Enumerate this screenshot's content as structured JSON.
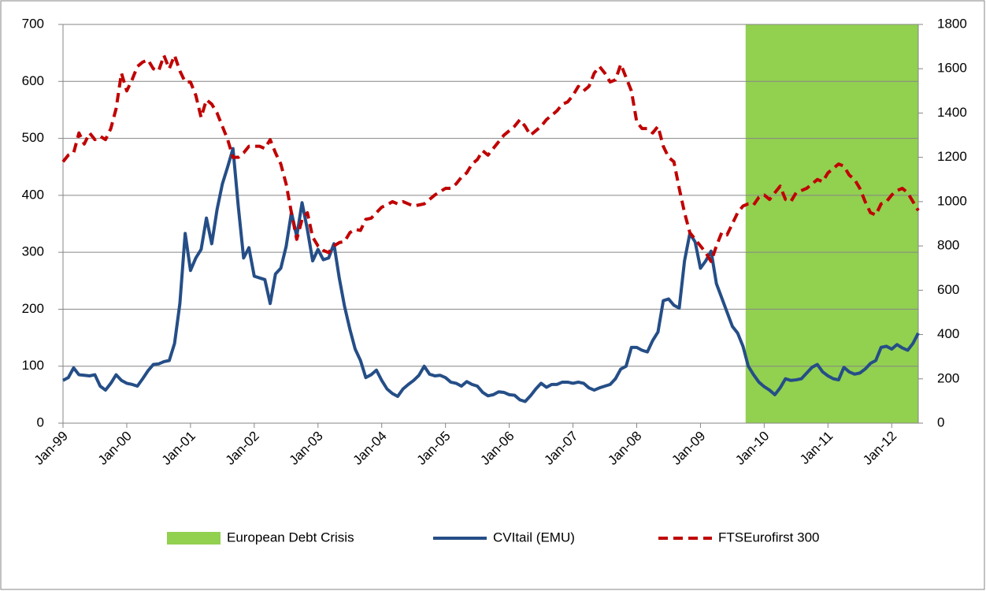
{
  "chart_data": {
    "type": "line",
    "categories": [
      "Jan-99",
      null,
      null,
      null,
      null,
      null,
      null,
      null,
      null,
      null,
      null,
      null,
      "Jan-00",
      null,
      null,
      null,
      null,
      null,
      null,
      null,
      null,
      null,
      null,
      null,
      "Jan-01",
      null,
      null,
      null,
      null,
      null,
      null,
      null,
      null,
      null,
      null,
      null,
      "Jan-02",
      null,
      null,
      null,
      null,
      null,
      null,
      null,
      null,
      null,
      null,
      null,
      "Jan-03",
      null,
      null,
      null,
      null,
      null,
      null,
      null,
      null,
      null,
      null,
      null,
      "Jan-04",
      null,
      null,
      null,
      null,
      null,
      null,
      null,
      null,
      null,
      null,
      null,
      "Jan-05",
      null,
      null,
      null,
      null,
      null,
      null,
      null,
      null,
      null,
      null,
      null,
      "Jan-06",
      null,
      null,
      null,
      null,
      null,
      null,
      null,
      null,
      null,
      null,
      null,
      "Jan-07",
      null,
      null,
      null,
      null,
      null,
      null,
      null,
      null,
      null,
      null,
      null,
      "Jan-08",
      null,
      null,
      null,
      null,
      null,
      null,
      null,
      null,
      null,
      null,
      null,
      "Jan-09",
      null,
      null,
      null,
      null,
      null,
      null,
      null,
      null,
      null,
      null,
      null,
      "Jan-10",
      null,
      null,
      null,
      null,
      null,
      null,
      null,
      null,
      null,
      null,
      null,
      "Jan-11",
      null,
      null,
      null,
      null,
      null,
      null,
      null,
      null,
      null,
      null,
      null,
      "Jan-12",
      null,
      null,
      null,
      null,
      null
    ],
    "ylim": [
      0,
      700
    ],
    "yticks": [
      0,
      100,
      200,
      300,
      400,
      500,
      600,
      700
    ],
    "y2lim": [
      0,
      1800
    ],
    "y2ticks": [
      0,
      200,
      400,
      600,
      800,
      1000,
      1200,
      1400,
      1600,
      1800
    ],
    "grid": true,
    "legend": "bottom",
    "series": [
      {
        "name": "European Debt Crisis",
        "type": "bar",
        "color": "#92d050",
        "values": [
          null,
          null,
          null,
          null,
          null,
          null,
          null,
          null,
          null,
          null,
          null,
          null,
          null,
          null,
          null,
          null,
          null,
          null,
          null,
          null,
          null,
          null,
          null,
          null,
          null,
          null,
          null,
          null,
          null,
          null,
          null,
          null,
          null,
          null,
          null,
          null,
          null,
          null,
          null,
          null,
          null,
          null,
          null,
          null,
          null,
          null,
          null,
          null,
          null,
          null,
          null,
          null,
          null,
          null,
          null,
          null,
          null,
          null,
          null,
          null,
          null,
          null,
          null,
          null,
          null,
          null,
          null,
          null,
          null,
          null,
          null,
          null,
          null,
          null,
          null,
          null,
          null,
          null,
          null,
          null,
          null,
          null,
          null,
          null,
          null,
          null,
          null,
          null,
          null,
          null,
          null,
          null,
          null,
          null,
          null,
          null,
          null,
          null,
          null,
          null,
          null,
          null,
          null,
          null,
          null,
          null,
          null,
          null,
          null,
          null,
          null,
          null,
          null,
          null,
          null,
          null,
          null,
          null,
          null,
          null,
          null,
          null,
          null,
          null,
          null,
          null,
          null,
          null,
          null,
          700,
          700,
          700,
          700,
          700,
          700,
          700,
          700,
          700,
          700,
          700,
          700,
          700,
          700,
          700,
          700,
          700,
          700,
          700,
          700,
          700,
          700,
          700,
          700,
          700,
          700,
          700,
          700,
          700,
          700,
          700,
          700,
          700
        ]
      },
      {
        "name": "CVItail (EMU)",
        "color": "#254e87",
        "values": [
          75,
          80,
          97,
          85,
          84,
          83,
          85,
          65,
          58,
          70,
          85,
          75,
          70,
          68,
          65,
          78,
          92,
          103,
          104,
          108,
          110,
          140,
          210,
          333,
          268,
          290,
          305,
          360,
          315,
          375,
          420,
          450,
          482,
          380,
          290,
          308,
          258,
          255,
          252,
          210,
          262,
          272,
          310,
          370,
          328,
          387,
          340,
          285,
          305,
          287,
          290,
          315,
          255,
          205,
          165,
          130,
          110,
          80,
          85,
          93,
          75,
          60,
          52,
          47,
          60,
          68,
          75,
          84,
          100,
          86,
          83,
          84,
          80,
          72,
          70,
          65,
          73,
          68,
          65,
          54,
          48,
          50,
          55,
          54,
          50,
          49,
          41,
          38,
          48,
          60,
          70,
          63,
          68,
          68,
          72,
          72,
          70,
          72,
          70,
          62,
          58,
          62,
          65,
          68,
          78,
          95,
          100,
          133,
          133,
          128,
          125,
          145,
          160,
          215,
          218,
          207,
          202,
          285,
          333,
          318,
          272,
          285,
          302,
          245,
          220,
          195,
          170,
          158,
          135,
          100,
          85,
          72,
          64,
          58,
          50,
          62,
          78,
          75,
          76,
          78,
          88,
          98,
          103,
          90,
          83,
          78,
          76,
          98,
          90,
          86,
          88,
          95,
          105,
          110,
          133,
          135,
          130,
          138,
          132,
          128,
          140,
          158
        ]
      },
      {
        "name": "FTSEurofirst 300",
        "color": "#c00000",
        "dash": true,
        "axis": "y2",
        "values": [
          1180,
          1210,
          1220,
          1310,
          1260,
          1310,
          1280,
          1295,
          1280,
          1330,
          1420,
          1580,
          1500,
          1550,
          1610,
          1630,
          1640,
          1600,
          1590,
          1660,
          1600,
          1660,
          1590,
          1540,
          1540,
          1480,
          1380,
          1460,
          1440,
          1400,
          1340,
          1280,
          1200,
          1200,
          1220,
          1250,
          1250,
          1250,
          1240,
          1280,
          1220,
          1170,
          1080,
          950,
          830,
          920,
          950,
          840,
          800,
          780,
          770,
          800,
          815,
          820,
          860,
          875,
          870,
          920,
          925,
          950,
          975,
          985,
          1000,
          990,
          1000,
          990,
          980,
          985,
          990,
          1010,
          1030,
          1045,
          1060,
          1060,
          1080,
          1110,
          1130,
          1170,
          1190,
          1230,
          1210,
          1240,
          1270,
          1300,
          1320,
          1340,
          1370,
          1340,
          1300,
          1320,
          1340,
          1370,
          1390,
          1410,
          1440,
          1450,
          1480,
          1520,
          1500,
          1520,
          1580,
          1610,
          1580,
          1540,
          1550,
          1620,
          1560,
          1500,
          1360,
          1330,
          1330,
          1310,
          1340,
          1250,
          1200,
          1180,
          1060,
          950,
          860,
          830,
          800,
          770,
          730,
          800,
          860,
          850,
          900,
          950,
          980,
          990,
          985,
          1020,
          1030,
          1010,
          1040,
          1070,
          1010,
          1000,
          1040,
          1050,
          1060,
          1080,
          1100,
          1090,
          1130,
          1150,
          1170,
          1160,
          1120,
          1100,
          1060,
          1000,
          950,
          940,
          990,
          1000,
          1030,
          1050,
          1060,
          1040,
          1000,
          960
        ]
      }
    ]
  }
}
